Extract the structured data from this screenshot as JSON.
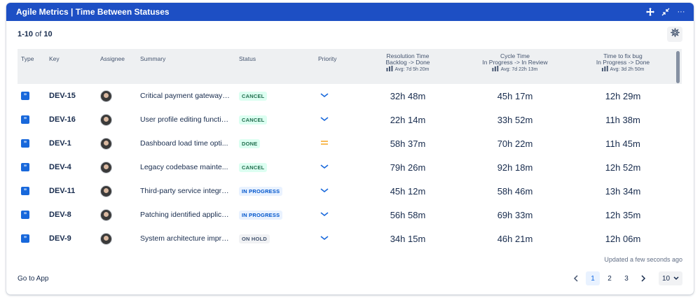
{
  "title": "Agile Metrics | Time Between Statuses",
  "header_icons": [
    "move-icon",
    "minimize-icon",
    "more-icon"
  ],
  "range": {
    "prefix": "1-10",
    "of": "of",
    "total": "10"
  },
  "columns": {
    "type": "Type",
    "key": "Key",
    "assignee": "Assignee",
    "summary": "Summary",
    "status": "Status",
    "priority": "Priority",
    "metric1": {
      "name": "Resolution Time",
      "transition": "Backlog -> Done",
      "avg": "Avg: 7d 5h 20m"
    },
    "metric2": {
      "name": "Cycle Time",
      "transition": "In Progress -> In Review",
      "avg": "Avg: 7d 22h 13m"
    },
    "metric3": {
      "name": "Time to fix bug",
      "transition": "In Progress -> Done",
      "avg": "Avg: 3d 2h 50m"
    }
  },
  "rows": [
    {
      "key": "DEV-15",
      "summary": "Critical payment gateway i...",
      "status": "CANCEL",
      "status_color": "#216e4e",
      "status_bg": "#dcfff1",
      "priority": "low",
      "m1": "32h 48m",
      "m2": "45h 17m",
      "m3": "12h 29m"
    },
    {
      "key": "DEV-16",
      "summary": "User profile editing functio...",
      "status": "CANCEL",
      "status_color": "#216e4e",
      "status_bg": "#dcfff1",
      "priority": "low",
      "m1": "22h 14m",
      "m2": "33h 52m",
      "m3": "11h 38m"
    },
    {
      "key": "DEV-1",
      "summary": "Dashboard load time opti...",
      "status": "DONE",
      "status_color": "#216e4e",
      "status_bg": "#dcfff1",
      "priority": "medium",
      "m1": "58h 37m",
      "m2": "70h 22m",
      "m3": "11h 45m"
    },
    {
      "key": "DEV-4",
      "summary": "Legacy codebase mainte...",
      "status": "CANCEL",
      "status_color": "#216e4e",
      "status_bg": "#dcfff1",
      "priority": "low",
      "m1": "79h 26m",
      "m2": "92h 18m",
      "m3": "12h 52m"
    },
    {
      "key": "DEV-11",
      "summary": "Third-party service integra...",
      "status": "IN PROGRESS",
      "status_color": "#0055cc",
      "status_bg": "#e9f2ff",
      "priority": "low",
      "m1": "45h 12m",
      "m2": "58h 46m",
      "m3": "13h 34m"
    },
    {
      "key": "DEV-8",
      "summary": "Patching identified applica...",
      "status": "IN PROGRESS",
      "status_color": "#0055cc",
      "status_bg": "#e9f2ff",
      "priority": "low",
      "m1": "56h 58m",
      "m2": "69h 33m",
      "m3": "12h 35m"
    },
    {
      "key": "DEV-9",
      "summary": "System architecture impro...",
      "status": "ON HOLD",
      "status_color": "#44546f",
      "status_bg": "#f1f2f4",
      "priority": "low",
      "m1": "34h 15m",
      "m2": "46h 21m",
      "m3": "12h 06m"
    }
  ],
  "updated": "Updated a few seconds ago",
  "goto_app": "Go to App",
  "pages": [
    "1",
    "2",
    "3"
  ],
  "current_page": "1",
  "per_page": "10",
  "colors": {
    "header": "#1d4fc4",
    "type_icon": "#1868db",
    "priority_low": "#1868db",
    "priority_medium": "#f5a623"
  }
}
